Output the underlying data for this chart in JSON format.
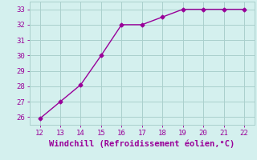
{
  "x": [
    12,
    13,
    14,
    15,
    16,
    17,
    18,
    19,
    20,
    21,
    22
  ],
  "y": [
    25.9,
    27.0,
    28.1,
    30.0,
    32.0,
    32.0,
    32.5,
    33.0,
    33.0,
    33.0,
    33.0
  ],
  "xlim": [
    11.5,
    22.5
  ],
  "ylim": [
    25.5,
    33.5
  ],
  "xticks": [
    12,
    13,
    14,
    15,
    16,
    17,
    18,
    19,
    20,
    21,
    22
  ],
  "yticks": [
    26,
    27,
    28,
    29,
    30,
    31,
    32,
    33
  ],
  "xlabel": "Windchill (Refroidissement éolien,°C)",
  "line_color": "#990099",
  "marker": "D",
  "bg_color": "#d4f0ee",
  "grid_color": "#aacfcc",
  "tick_color": "#990099",
  "label_color": "#990099",
  "tick_fontsize": 6.5,
  "xlabel_fontsize": 7.5,
  "marker_size": 2.5,
  "line_width": 1.0
}
